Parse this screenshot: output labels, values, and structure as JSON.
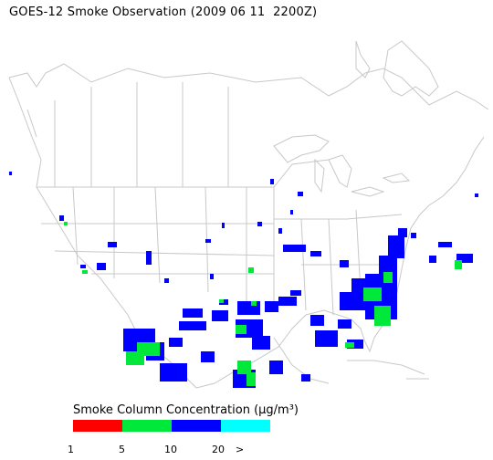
{
  "title": "GOES-12 Smoke Observation (2009 06 11  2200Z)",
  "legend": {
    "title": "Smoke Column Concentration (μg/m³)",
    "colors": [
      "#ff0000",
      "#00e83a",
      "#0000ff",
      "#00ffff"
    ],
    "ticks": [
      "1",
      "5",
      "10",
      "20",
      ">"
    ]
  },
  "map_colors": {
    "land_outline": "#c8c8c8",
    "smoke_light": "#00e83a",
    "smoke_dense": "#0000ff"
  }
}
